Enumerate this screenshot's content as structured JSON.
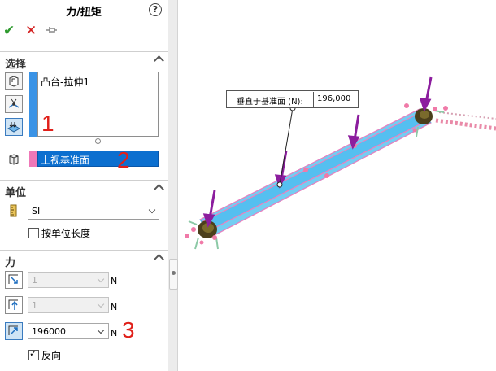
{
  "panel": {
    "title": "力/扭矩",
    "help_icon": "?",
    "ok_icon": "✔",
    "cancel_icon": "✕",
    "pin_icon": "pushpin-icon",
    "selection": {
      "label": "选择",
      "list_items": [
        "凸台-拉伸1"
      ],
      "direction_face": "上视基准面",
      "list_color": "#3a93e6",
      "face_color": "#ef78b8"
    },
    "units": {
      "label": "单位",
      "system": "SI",
      "per_unit_length_label": "按单位长度",
      "per_unit_length_checked": false
    },
    "force": {
      "label": "力",
      "fields": [
        {
          "value": "1",
          "unit": "N",
          "enabled": false
        },
        {
          "value": "1",
          "unit": "N",
          "enabled": false
        },
        {
          "value": "196000",
          "unit": "N",
          "enabled": true
        }
      ],
      "reverse_label": "反向",
      "reverse_checked": true
    }
  },
  "annotations": [
    "1",
    "2",
    "3"
  ],
  "viewport": {
    "callout_label": "垂直于基准面 (N):",
    "callout_value": "196,000"
  }
}
